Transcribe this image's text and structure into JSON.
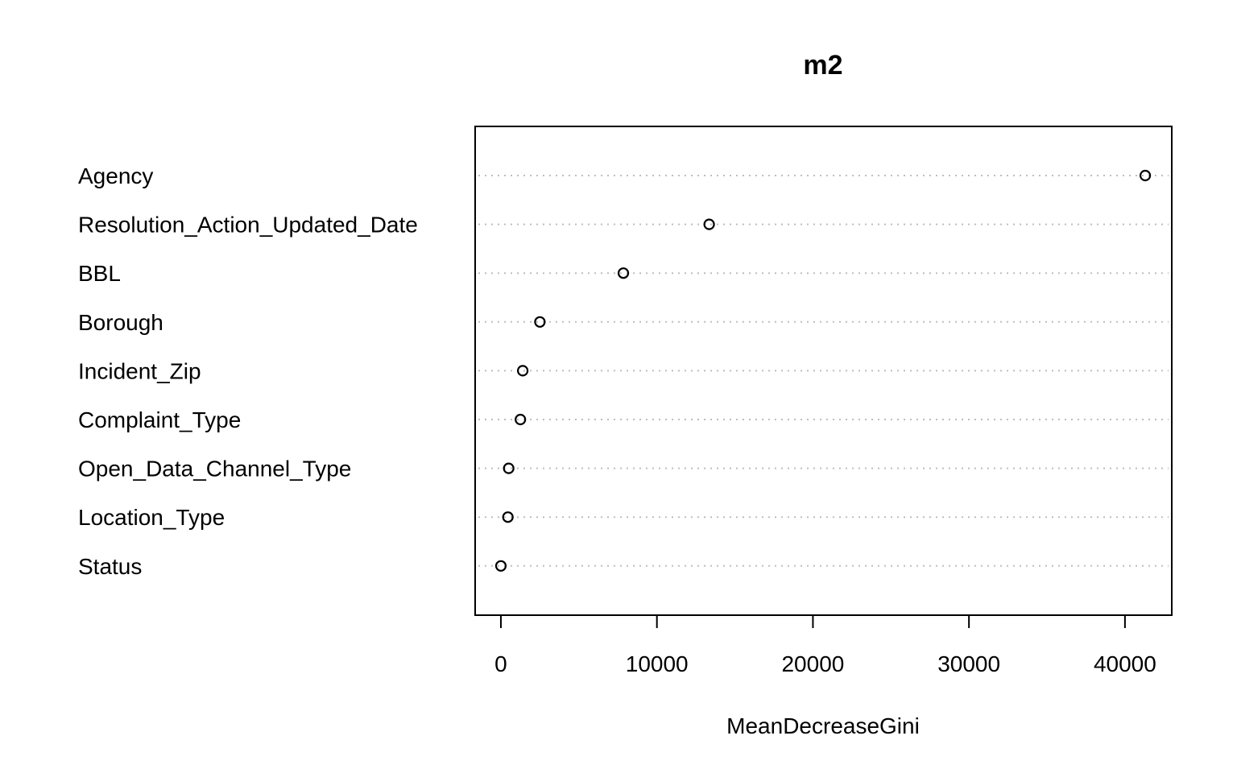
{
  "chart_data": {
    "type": "scatter",
    "title": "m2",
    "xlabel": "MeanDecreaseGini",
    "ylabel": "",
    "categories": [
      "Agency",
      "Resolution_Action_Updated_Date",
      "BBL",
      "Borough",
      "Incident_Zip",
      "Complaint_Type",
      "Open_Data_Channel_Type",
      "Location_Type",
      "Status"
    ],
    "values": [
      41300,
      13350,
      7850,
      2500,
      1400,
      1250,
      500,
      450,
      0
    ],
    "xlim": [
      -1650,
      43000
    ],
    "xticks": [
      0,
      10000,
      20000,
      30000,
      40000
    ],
    "xtick_labels": [
      "0",
      "10000",
      "20000",
      "30000",
      "40000"
    ],
    "grid": "dotted horizontal guide lines per variable",
    "legend": "none",
    "colors": {
      "points": "#000000",
      "guides": "#bebebe",
      "frame": "#000000"
    }
  }
}
